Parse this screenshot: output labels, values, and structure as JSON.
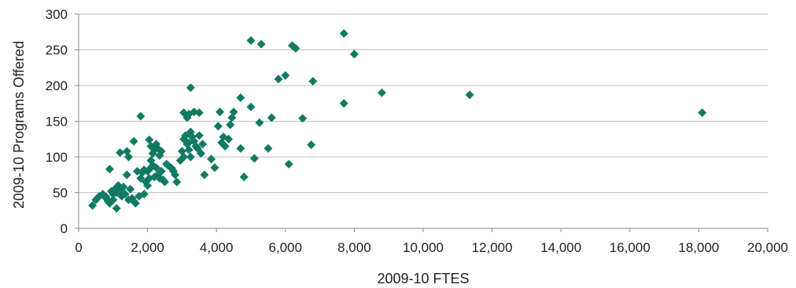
{
  "chart_data": {
    "type": "scatter",
    "title": "",
    "xlabel": "2009-10 FTES",
    "ylabel": "2009-10 Programs Offered",
    "xlim": [
      0,
      20000
    ],
    "ylim": [
      0,
      300
    ],
    "x_ticks": [
      0,
      2000,
      4000,
      6000,
      8000,
      10000,
      12000,
      14000,
      16000,
      18000,
      20000
    ],
    "x_tick_labels": [
      "0",
      "2,000",
      "4,000",
      "6,000",
      "8,000",
      "10,000",
      "12,000",
      "14,000",
      "16,000",
      "18,000",
      "20,000"
    ],
    "y_ticks": [
      0,
      50,
      100,
      150,
      200,
      250,
      300
    ],
    "y_tick_labels": [
      "0",
      "50",
      "100",
      "150",
      "200",
      "250",
      "300"
    ],
    "grid": "horizontal",
    "legend": "none",
    "marker": "diamond",
    "color": "#107a62",
    "points": [
      [
        400,
        32
      ],
      [
        500,
        40
      ],
      [
        600,
        45
      ],
      [
        700,
        48
      ],
      [
        800,
        44
      ],
      [
        850,
        38
      ],
      [
        900,
        35
      ],
      [
        950,
        52
      ],
      [
        1000,
        48
      ],
      [
        1050,
        55
      ],
      [
        1100,
        28
      ],
      [
        1150,
        60
      ],
      [
        900,
        83
      ],
      [
        800,
        42
      ],
      [
        1000,
        40
      ],
      [
        1100,
        50
      ],
      [
        1200,
        53
      ],
      [
        1250,
        45
      ],
      [
        1300,
        58
      ],
      [
        1350,
        48
      ],
      [
        1400,
        75
      ],
      [
        1450,
        40
      ],
      [
        1500,
        55
      ],
      [
        1550,
        42
      ],
      [
        1600,
        38
      ],
      [
        1650,
        35
      ],
      [
        1700,
        80
      ],
      [
        1750,
        45
      ],
      [
        1800,
        70
      ],
      [
        1850,
        78
      ],
      [
        1900,
        82
      ],
      [
        1950,
        65
      ],
      [
        2000,
        60
      ],
      [
        1200,
        106
      ],
      [
        1400,
        108
      ],
      [
        1450,
        100
      ],
      [
        1600,
        122
      ],
      [
        1800,
        157
      ],
      [
        2050,
        124
      ],
      [
        2100,
        115
      ],
      [
        2150,
        105
      ],
      [
        2200,
        110
      ],
      [
        2250,
        118
      ],
      [
        2300,
        112
      ],
      [
        2350,
        102
      ],
      [
        2400,
        108
      ],
      [
        2000,
        80
      ],
      [
        2100,
        95
      ],
      [
        2150,
        88
      ],
      [
        2200,
        72
      ],
      [
        2250,
        85
      ],
      [
        2300,
        75
      ],
      [
        2350,
        70
      ],
      [
        2450,
        68
      ],
      [
        2500,
        65
      ],
      [
        2550,
        90
      ],
      [
        2600,
        88
      ],
      [
        2700,
        84
      ],
      [
        2750,
        80
      ],
      [
        2800,
        75
      ],
      [
        1900,
        48
      ],
      [
        2050,
        70
      ],
      [
        2100,
        85
      ],
      [
        2400,
        80
      ],
      [
        2850,
        65
      ],
      [
        2950,
        95
      ],
      [
        3000,
        108
      ],
      [
        3050,
        125
      ],
      [
        3100,
        130
      ],
      [
        3150,
        118
      ],
      [
        3200,
        120
      ],
      [
        3250,
        135
      ],
      [
        3300,
        128
      ],
      [
        3350,
        122
      ],
      [
        3400,
        115
      ],
      [
        3450,
        112
      ],
      [
        3500,
        130
      ],
      [
        3550,
        105
      ],
      [
        3600,
        118
      ],
      [
        3050,
        162
      ],
      [
        3150,
        155
      ],
      [
        3200,
        160
      ],
      [
        3350,
        163
      ],
      [
        3250,
        197
      ],
      [
        3500,
        162
      ],
      [
        3050,
        100
      ],
      [
        3200,
        110
      ],
      [
        3250,
        100
      ],
      [
        3650,
        75
      ],
      [
        3850,
        97
      ],
      [
        3950,
        85
      ],
      [
        4100,
        163
      ],
      [
        4050,
        143
      ],
      [
        4150,
        120
      ],
      [
        4200,
        128
      ],
      [
        4250,
        115
      ],
      [
        4350,
        125
      ],
      [
        4400,
        145
      ],
      [
        4450,
        155
      ],
      [
        4500,
        163
      ],
      [
        4700,
        183
      ],
      [
        4700,
        112
      ],
      [
        4800,
        72
      ],
      [
        5000,
        170
      ],
      [
        5100,
        98
      ],
      [
        5250,
        148
      ],
      [
        5500,
        112
      ],
      [
        5600,
        155
      ],
      [
        5800,
        209
      ],
      [
        6000,
        214
      ],
      [
        6100,
        90
      ],
      [
        6500,
        154
      ],
      [
        6750,
        117
      ],
      [
        6800,
        206
      ],
      [
        5000,
        263
      ],
      [
        5300,
        258
      ],
      [
        6200,
        256
      ],
      [
        6300,
        252
      ],
      [
        7700,
        273
      ],
      [
        8000,
        244
      ],
      [
        7700,
        175
      ],
      [
        8800,
        190
      ],
      [
        11350,
        187
      ],
      [
        18100,
        162
      ]
    ]
  }
}
